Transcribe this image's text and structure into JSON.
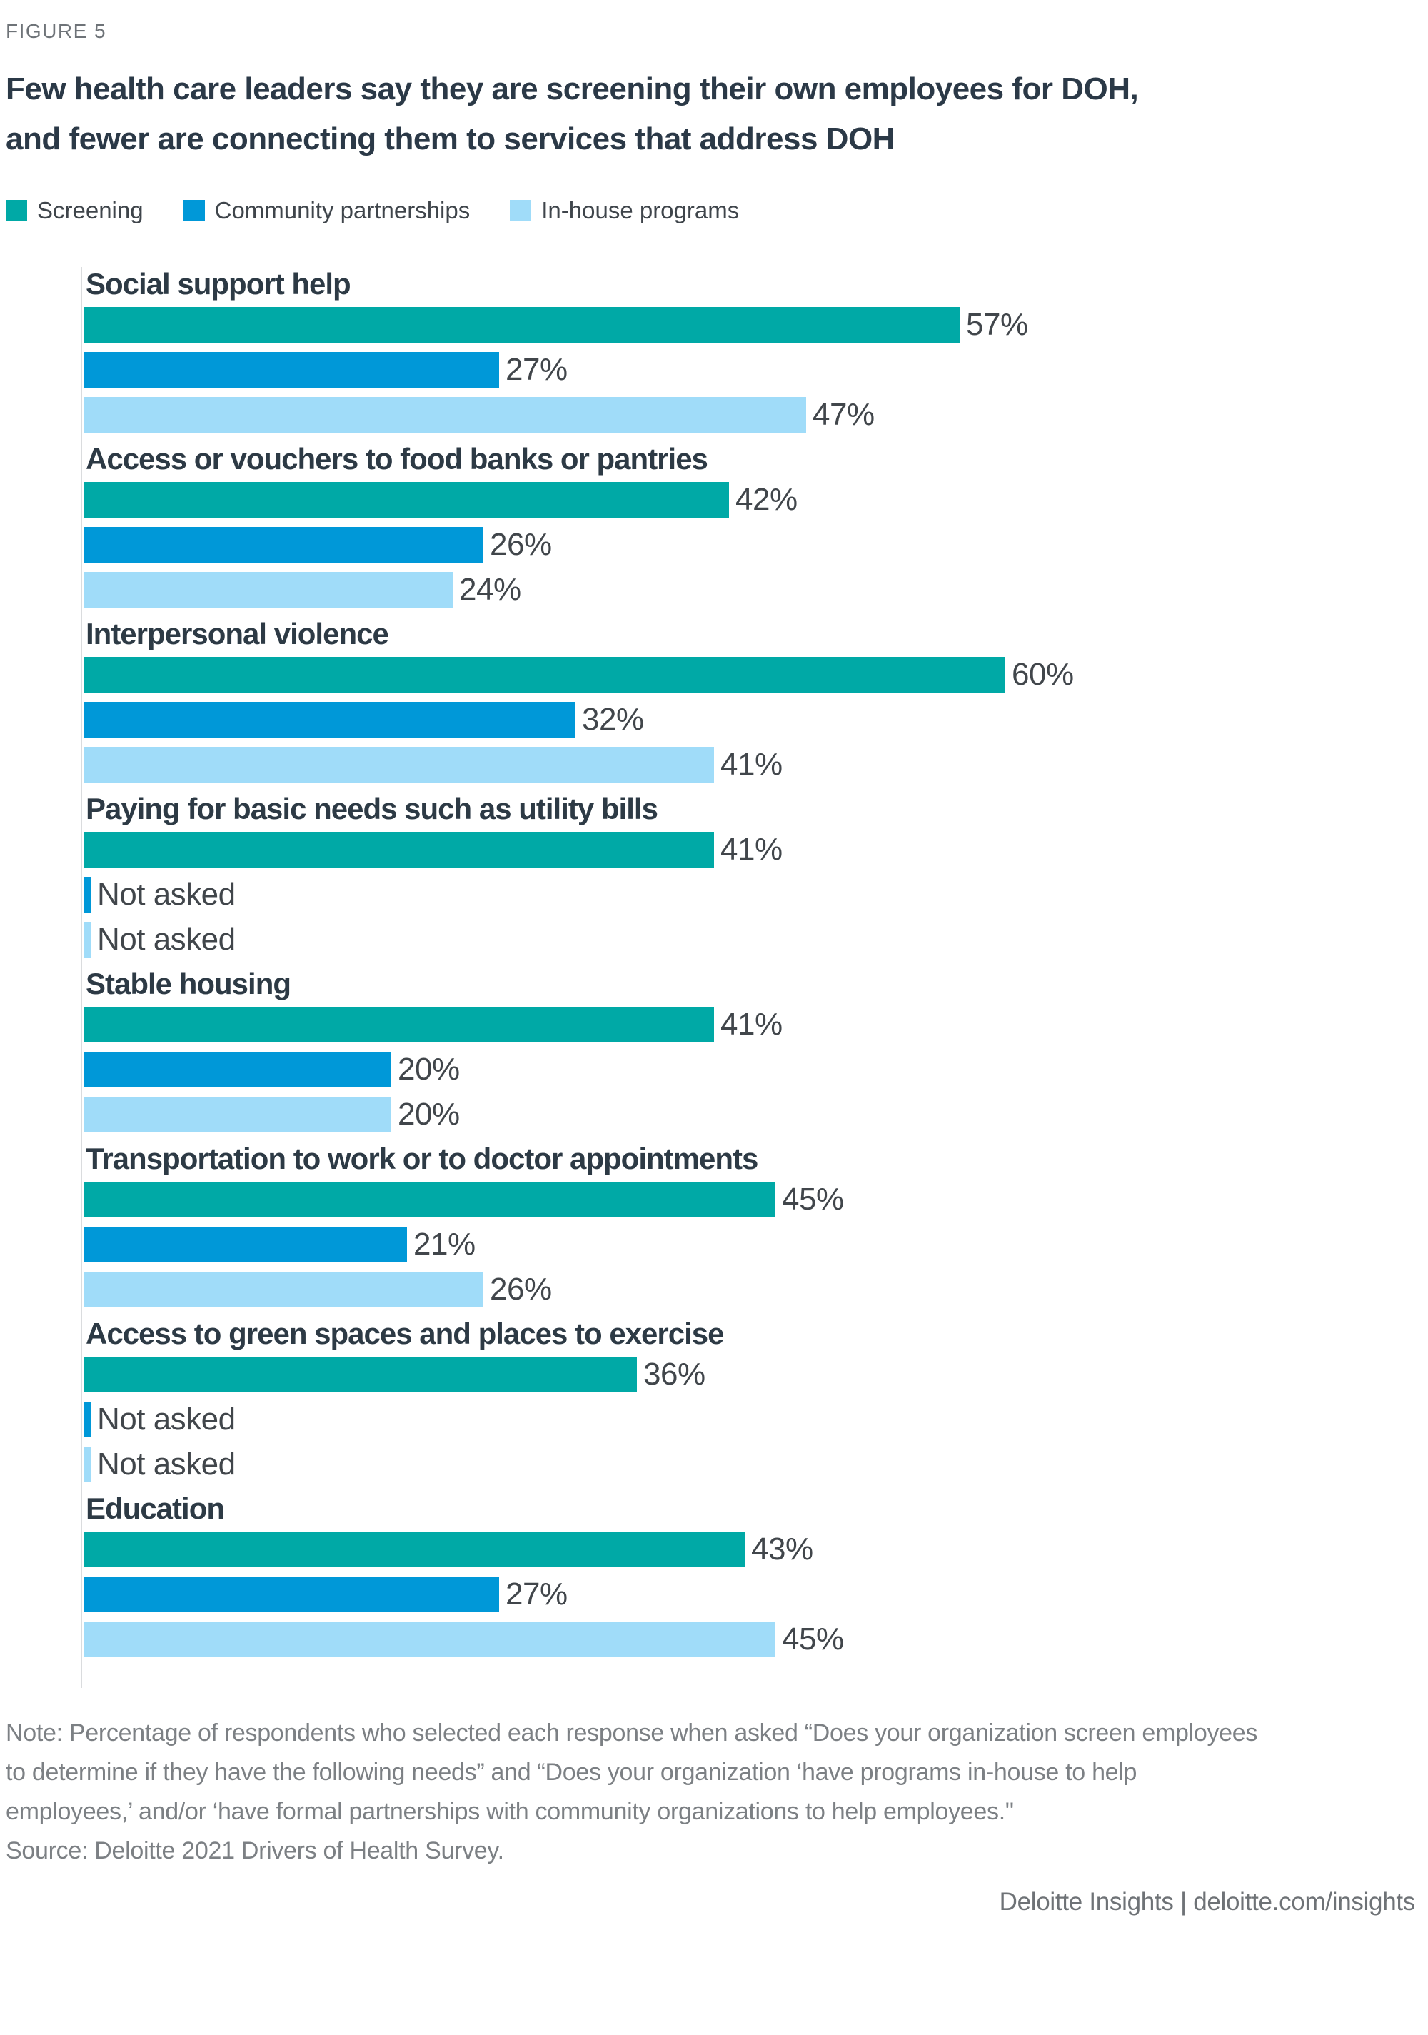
{
  "figure_label": "FIGURE 5",
  "title_line1": "Few health care leaders say they are screening their own employees for DOH,",
  "title_line2": "and fewer are connecting them to services that address DOH",
  "legend": [
    {
      "label": "Screening",
      "color": "#00A9A6"
    },
    {
      "label": "Community partnerships",
      "color": "#0098D8"
    },
    {
      "label": "In-house programs",
      "color": "#A0DCF9"
    }
  ],
  "chart_data": {
    "type": "bar",
    "orientation": "horizontal",
    "title": "Few health care leaders say they are screening their own employees for DOH, and fewer are connecting them to services that address DOH",
    "categories": [
      "Social support help",
      "Access or vouchers to food banks or pantries",
      "Interpersonal violence",
      "Paying for basic needs such as utility bills",
      "Stable housing",
      "Transportation to work or to doctor appointments",
      "Access to green spaces and places to exercise",
      "Education"
    ],
    "series": [
      {
        "name": "Screening",
        "color": "#00A9A6",
        "values": [
          57,
          42,
          60,
          41,
          41,
          45,
          36,
          43
        ]
      },
      {
        "name": "Community partnerships",
        "color": "#0098D8",
        "values": [
          27,
          26,
          32,
          null,
          20,
          21,
          null,
          27
        ]
      },
      {
        "name": "In-house programs",
        "color": "#A0DCF9",
        "values": [
          47,
          24,
          41,
          null,
          20,
          26,
          null,
          45
        ]
      }
    ],
    "value_suffix": "%",
    "not_asked_label": "Not asked",
    "xlim": [
      0,
      87
    ],
    "grid": false,
    "legend_position": "top"
  },
  "note_lines": [
    "Note: Percentage of respondents who selected each response when asked “Does your organization screen employees",
    "to determine if they have the following needs” and “Does your organization ‘have programs in-house to help",
    "employees,’ and/or ‘have formal partnerships with community organizations to help employees.\"",
    "Source: Deloitte 2021 Drivers of Health Survey."
  ],
  "footer": "Deloitte Insights | deloitte.com/insights"
}
